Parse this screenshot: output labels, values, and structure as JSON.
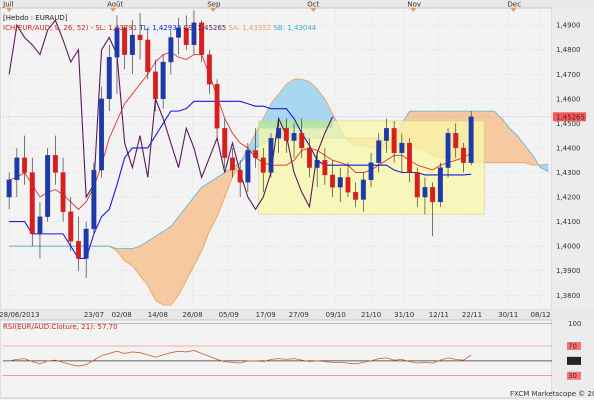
{
  "chart_data": {
    "type": "candlestick",
    "period_label": "[Hebdo : EURAUD]",
    "ichimoku_legend": {
      "prefix": "ICH(EUR/AUD, 9, 26, 52) - ",
      "items": [
        {
          "text": "SL: 1,43791",
          "color": "#cc2222"
        },
        {
          "text": "TL: 1,42933",
          "color": "#0a2ad0"
        },
        {
          "text": "CS: 1,45265",
          "color": "#5a1a5a"
        },
        {
          "text": "SA: 1,43352",
          "color": "#e8a060"
        },
        {
          "text": "SB: 1,43044",
          "color": "#3ba7d8"
        }
      ]
    },
    "rsi_legend": "RSI(EUR/AUD:Cloture, 21): 57,70",
    "copyright": "FXCM Marketscope © 2013",
    "last_price_label": "1,45265",
    "colors": {
      "bull": "#1e3aa8",
      "bear": "#d62020",
      "tenkan": "#e03030",
      "kijun": "#1a1ad8",
      "chikou": "#5a1a5a",
      "kumo_bull": "#a7d8ef",
      "kumo_bear": "#f7c9a0",
      "rsi_line": "#c8643a",
      "box_fill": "#f8f7a8"
    },
    "month_labels": [
      {
        "t": 0,
        "label": "Juil"
      },
      {
        "t": 13.5,
        "label": "Août"
      },
      {
        "t": 26.5,
        "label": "Sep"
      },
      {
        "t": 39.5,
        "label": "Oct"
      },
      {
        "t": 52.5,
        "label": "Nov"
      },
      {
        "t": 65.5,
        "label": "Dec"
      }
    ],
    "date_labels": [
      {
        "t": 0,
        "label": "28/06/2013"
      },
      {
        "t": 11,
        "label": "23/07"
      },
      {
        "t": 14.6,
        "label": "02/08"
      },
      {
        "t": 19.3,
        "label": "14/08"
      },
      {
        "t": 23.8,
        "label": "26/08"
      },
      {
        "t": 28.5,
        "label": "05/09"
      },
      {
        "t": 33.3,
        "label": "17/09"
      },
      {
        "t": 37.6,
        "label": "27/09"
      },
      {
        "t": 42.4,
        "label": "09/10"
      },
      {
        "t": 47,
        "label": "21/10"
      },
      {
        "t": 51.3,
        "label": "31/10"
      },
      {
        "t": 55.8,
        "label": "12/11"
      },
      {
        "t": 60.1,
        "label": "22/11"
      },
      {
        "t": 64.8,
        "label": "30/11"
      },
      {
        "t": 69,
        "label": "08/12"
      }
    ],
    "y_ticks": [
      "1,3800",
      "1,3900",
      "1,4000",
      "1,4100",
      "1,4200",
      "1,4300",
      "1,4400",
      "1,4500",
      "1,4600",
      "1,4700",
      "1,4800",
      "1,4900"
    ],
    "y_tick_values": [
      1.38,
      1.39,
      1.4,
      1.41,
      1.42,
      1.43,
      1.44,
      1.45,
      1.46,
      1.47,
      1.48,
      1.49
    ],
    "ylim": [
      1.374,
      1.497
    ],
    "xlim": [
      -0.8,
      70.5
    ],
    "rsi_ticks": [
      "100",
      "70",
      "50",
      "30"
    ],
    "rsi_tick_values": [
      100,
      70,
      50,
      30
    ],
    "rsi_ylim": [
      0,
      105
    ],
    "candles": [
      {
        "o": 1.42,
        "h": 1.43,
        "l": 1.415,
        "c": 1.427
      },
      {
        "o": 1.427,
        "h": 1.44,
        "l": 1.42,
        "c": 1.436
      },
      {
        "o": 1.436,
        "h": 1.445,
        "l": 1.425,
        "c": 1.43
      },
      {
        "o": 1.43,
        "h": 1.436,
        "l": 1.4,
        "c": 1.405
      },
      {
        "o": 1.405,
        "h": 1.418,
        "l": 1.395,
        "c": 1.412
      },
      {
        "o": 1.412,
        "h": 1.44,
        "l": 1.41,
        "c": 1.437
      },
      {
        "o": 1.437,
        "h": 1.445,
        "l": 1.425,
        "c": 1.43
      },
      {
        "o": 1.43,
        "h": 1.436,
        "l": 1.41,
        "c": 1.414
      },
      {
        "o": 1.414,
        "h": 1.42,
        "l": 1.398,
        "c": 1.402
      },
      {
        "o": 1.402,
        "h": 1.412,
        "l": 1.39,
        "c": 1.395
      },
      {
        "o": 1.395,
        "h": 1.41,
        "l": 1.387,
        "c": 1.407
      },
      {
        "o": 1.407,
        "h": 1.434,
        "l": 1.405,
        "c": 1.431
      },
      {
        "o": 1.431,
        "h": 1.465,
        "l": 1.428,
        "c": 1.46
      },
      {
        "o": 1.46,
        "h": 1.482,
        "l": 1.455,
        "c": 1.477
      },
      {
        "o": 1.477,
        "h": 1.494,
        "l": 1.462,
        "c": 1.489
      },
      {
        "o": 1.489,
        "h": 1.49,
        "l": 1.472,
        "c": 1.478
      },
      {
        "o": 1.478,
        "h": 1.492,
        "l": 1.47,
        "c": 1.486
      },
      {
        "o": 1.486,
        "h": 1.495,
        "l": 1.476,
        "c": 1.484
      },
      {
        "o": 1.484,
        "h": 1.489,
        "l": 1.468,
        "c": 1.471
      },
      {
        "o": 1.471,
        "h": 1.476,
        "l": 1.455,
        "c": 1.46
      },
      {
        "o": 1.46,
        "h": 1.478,
        "l": 1.456,
        "c": 1.475
      },
      {
        "o": 1.475,
        "h": 1.488,
        "l": 1.47,
        "c": 1.485
      },
      {
        "o": 1.485,
        "h": 1.493,
        "l": 1.478,
        "c": 1.489
      },
      {
        "o": 1.489,
        "h": 1.494,
        "l": 1.48,
        "c": 1.482
      },
      {
        "o": 1.482,
        "h": 1.496,
        "l": 1.478,
        "c": 1.491
      },
      {
        "o": 1.491,
        "h": 1.492,
        "l": 1.475,
        "c": 1.478
      },
      {
        "o": 1.478,
        "h": 1.48,
        "l": 1.462,
        "c": 1.466
      },
      {
        "o": 1.466,
        "h": 1.468,
        "l": 1.444,
        "c": 1.448
      },
      {
        "o": 1.448,
        "h": 1.452,
        "l": 1.432,
        "c": 1.436
      },
      {
        "o": 1.436,
        "h": 1.44,
        "l": 1.428,
        "c": 1.431
      },
      {
        "o": 1.431,
        "h": 1.435,
        "l": 1.42,
        "c": 1.426
      },
      {
        "o": 1.426,
        "h": 1.442,
        "l": 1.422,
        "c": 1.439
      },
      {
        "o": 1.439,
        "h": 1.448,
        "l": 1.432,
        "c": 1.436
      },
      {
        "o": 1.436,
        "h": 1.44,
        "l": 1.422,
        "c": 1.43
      },
      {
        "o": 1.43,
        "h": 1.446,
        "l": 1.428,
        "c": 1.444
      },
      {
        "o": 1.444,
        "h": 1.451,
        "l": 1.438,
        "c": 1.448
      },
      {
        "o": 1.448,
        "h": 1.452,
        "l": 1.438,
        "c": 1.443
      },
      {
        "o": 1.443,
        "h": 1.45,
        "l": 1.436,
        "c": 1.446
      },
      {
        "o": 1.446,
        "h": 1.452,
        "l": 1.436,
        "c": 1.44
      },
      {
        "o": 1.44,
        "h": 1.444,
        "l": 1.428,
        "c": 1.432
      },
      {
        "o": 1.432,
        "h": 1.438,
        "l": 1.424,
        "c": 1.435
      },
      {
        "o": 1.435,
        "h": 1.44,
        "l": 1.425,
        "c": 1.429
      },
      {
        "o": 1.429,
        "h": 1.435,
        "l": 1.42,
        "c": 1.424
      },
      {
        "o": 1.424,
        "h": 1.432,
        "l": 1.418,
        "c": 1.428
      },
      {
        "o": 1.428,
        "h": 1.434,
        "l": 1.42,
        "c": 1.422
      },
      {
        "o": 1.422,
        "h": 1.426,
        "l": 1.416,
        "c": 1.419
      },
      {
        "o": 1.419,
        "h": 1.43,
        "l": 1.414,
        "c": 1.427
      },
      {
        "o": 1.427,
        "h": 1.438,
        "l": 1.424,
        "c": 1.434
      },
      {
        "o": 1.434,
        "h": 1.446,
        "l": 1.43,
        "c": 1.443
      },
      {
        "o": 1.443,
        "h": 1.452,
        "l": 1.438,
        "c": 1.448
      },
      {
        "o": 1.448,
        "h": 1.451,
        "l": 1.434,
        "c": 1.438
      },
      {
        "o": 1.438,
        "h": 1.446,
        "l": 1.43,
        "c": 1.442
      },
      {
        "o": 1.442,
        "h": 1.444,
        "l": 1.426,
        "c": 1.43
      },
      {
        "o": 1.43,
        "h": 1.432,
        "l": 1.416,
        "c": 1.42
      },
      {
        "o": 1.42,
        "h": 1.428,
        "l": 1.413,
        "c": 1.424
      },
      {
        "o": 1.424,
        "h": 1.426,
        "l": 1.404,
        "c": 1.418
      },
      {
        "o": 1.418,
        "h": 1.434,
        "l": 1.416,
        "c": 1.432
      },
      {
        "o": 1.432,
        "h": 1.448,
        "l": 1.428,
        "c": 1.446
      },
      {
        "o": 1.446,
        "h": 1.45,
        "l": 1.436,
        "c": 1.44
      },
      {
        "o": 1.44,
        "h": 1.442,
        "l": 1.43,
        "c": 1.434
      },
      {
        "o": 1.434,
        "h": 1.455,
        "l": 1.433,
        "c": 1.4527
      }
    ],
    "tenkan": [
      1.427,
      1.428,
      1.43,
      1.425,
      1.42,
      1.422,
      1.423,
      1.421,
      1.418,
      1.415,
      1.418,
      1.424,
      1.433,
      1.444,
      1.451,
      1.458,
      1.462,
      1.466,
      1.47,
      1.475,
      1.478,
      1.479,
      1.477,
      1.476,
      1.478,
      1.478,
      1.47,
      1.461,
      1.452,
      1.446,
      1.442,
      1.44,
      1.436,
      1.434,
      1.433,
      1.433,
      1.433,
      1.435,
      1.439,
      1.44,
      1.439,
      1.437,
      1.435,
      1.434,
      1.433,
      1.43,
      1.43,
      1.431,
      1.433,
      1.435,
      1.437,
      1.437,
      1.435,
      1.433,
      1.432,
      1.431,
      1.433,
      1.434,
      1.435,
      1.436,
      1.4379
    ],
    "kijun": [
      1.41,
      1.41,
      1.41,
      1.405,
      1.405,
      1.405,
      1.405,
      1.405,
      1.4,
      1.395,
      1.395,
      1.405,
      1.412,
      1.415,
      1.425,
      1.436,
      1.44,
      1.44,
      1.44,
      1.445,
      1.45,
      1.455,
      1.455,
      1.456,
      1.459,
      1.459,
      1.459,
      1.459,
      1.459,
      1.459,
      1.459,
      1.458,
      1.457,
      1.457,
      1.456,
      1.456,
      1.456,
      1.452,
      1.446,
      1.441,
      1.435,
      1.433,
      1.433,
      1.433,
      1.433,
      1.433,
      1.433,
      1.433,
      1.433,
      1.433,
      1.431,
      1.43,
      1.43,
      1.43,
      1.429,
      1.429,
      1.429,
      1.429,
      1.429,
      1.429,
      1.4293
    ],
    "chikou": [
      1.47,
      1.49,
      1.485,
      1.482,
      1.478,
      1.488,
      1.492,
      1.484,
      1.475,
      1.48,
      1.42,
      1.425,
      1.48,
      1.485,
      1.478,
      1.442,
      1.432,
      1.445,
      1.428,
      1.46,
      1.452,
      1.442,
      1.432,
      1.448,
      1.44,
      1.428,
      1.436,
      1.444,
      1.43,
      1.442,
      1.43,
      1.42,
      1.415,
      1.42,
      1.43,
      1.452,
      1.445,
      1.43,
      1.422,
      1.416,
      1.438,
      1.446,
      1.4527
    ],
    "senkou_a": [
      1.4,
      1.4,
      1.4,
      1.4,
      1.4,
      1.4,
      1.4,
      1.4,
      1.4,
      1.4,
      1.4,
      1.4,
      1.4,
      1.4,
      1.398,
      1.394,
      1.392,
      1.388,
      1.384,
      1.378,
      1.376,
      1.376,
      1.38,
      1.386,
      1.392,
      1.398,
      1.406,
      1.412,
      1.42,
      1.428,
      1.434,
      1.44,
      1.446,
      1.452,
      1.458,
      1.462,
      1.466,
      1.468,
      1.468,
      1.467,
      1.464,
      1.46,
      1.454,
      1.448,
      1.443,
      1.441,
      1.441,
      1.44,
      1.44,
      1.44,
      1.44,
      1.44,
      1.44,
      1.44,
      1.439,
      1.437,
      1.436,
      1.436,
      1.435,
      1.434,
      1.434,
      1.434,
      1.434,
      1.434,
      1.434,
      1.434,
      1.434,
      1.434,
      1.433,
      1.433,
      1.4335
    ],
    "senkou_b": [
      1.4,
      1.4,
      1.4,
      1.4,
      1.4,
      1.4,
      1.4,
      1.4,
      1.4,
      1.4,
      1.4,
      1.4,
      1.4,
      1.4,
      1.399,
      1.399,
      1.399,
      1.4,
      1.402,
      1.404,
      1.406,
      1.408,
      1.412,
      1.416,
      1.42,
      1.424,
      1.426,
      1.428,
      1.43,
      1.432,
      1.434,
      1.437,
      1.44,
      1.442,
      1.443,
      1.444,
      1.444,
      1.444,
      1.444,
      1.444,
      1.444,
      1.444,
      1.444,
      1.444,
      1.444,
      1.444,
      1.444,
      1.444,
      1.444,
      1.444,
      1.444,
      1.45,
      1.455,
      1.455,
      1.455,
      1.455,
      1.455,
      1.455,
      1.455,
      1.455,
      1.455,
      1.455,
      1.455,
      1.455,
      1.452,
      1.448,
      1.445,
      1.441,
      1.437,
      1.432,
      1.4304
    ],
    "rsi": [
      50,
      52,
      53,
      49,
      46,
      50,
      51,
      48,
      45,
      43,
      45,
      51,
      57,
      60,
      63,
      60,
      62,
      61,
      58,
      55,
      58,
      61,
      63,
      62,
      64,
      60,
      56,
      52,
      49,
      48,
      47,
      50,
      50,
      49,
      52,
      53,
      52,
      53,
      51,
      49,
      50,
      49,
      48,
      48,
      47,
      46,
      48,
      50,
      53,
      54,
      51,
      52,
      49,
      47,
      48,
      47,
      51,
      54,
      52,
      51,
      57.7
    ],
    "box": {
      "t0": 32.4,
      "t1": 61.7,
      "y0": 1.413,
      "y1": 1.451
    },
    "green_box": {
      "t0": 32.4,
      "t1": 42,
      "y0": 1.448,
      "y1": 1.451
    }
  }
}
